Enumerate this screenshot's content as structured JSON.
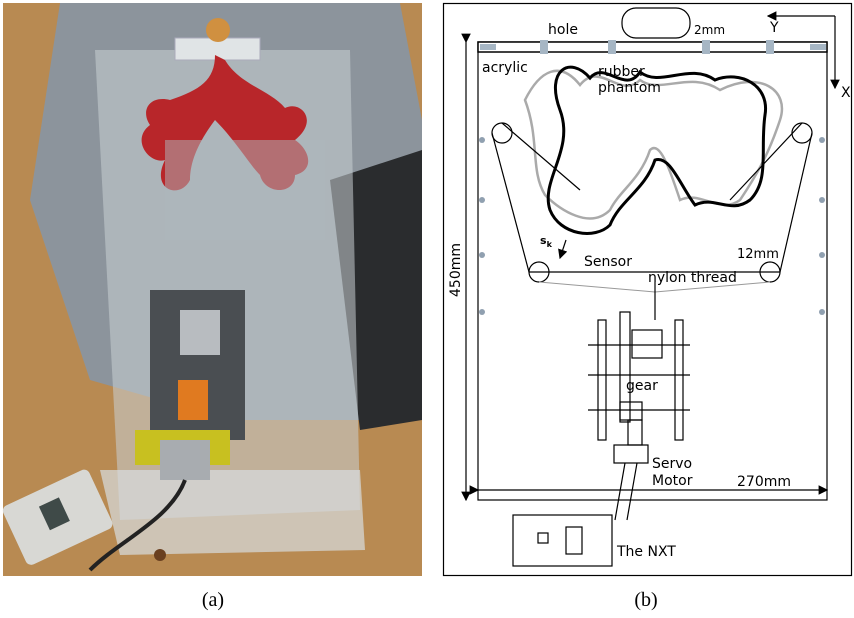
{
  "photo": {
    "caption": "(a)"
  },
  "diagram": {
    "caption": "(b)",
    "labels": {
      "hole": "hole",
      "gap": "2mm",
      "y_axis": "Y",
      "x_axis": "X",
      "acrylic": "acrylic",
      "phantom_1": "rubber",
      "phantom_2": "phantom",
      "sensor": "Sensor",
      "sensor_symbol": "s",
      "sensor_index": "k",
      "pulley": "12mm",
      "thread": "nylon thread",
      "height": "450mm",
      "gear": "gear",
      "motor_1": "Servo",
      "motor_2": "Motor",
      "width": "270mm",
      "nxt": "The NXT"
    }
  }
}
